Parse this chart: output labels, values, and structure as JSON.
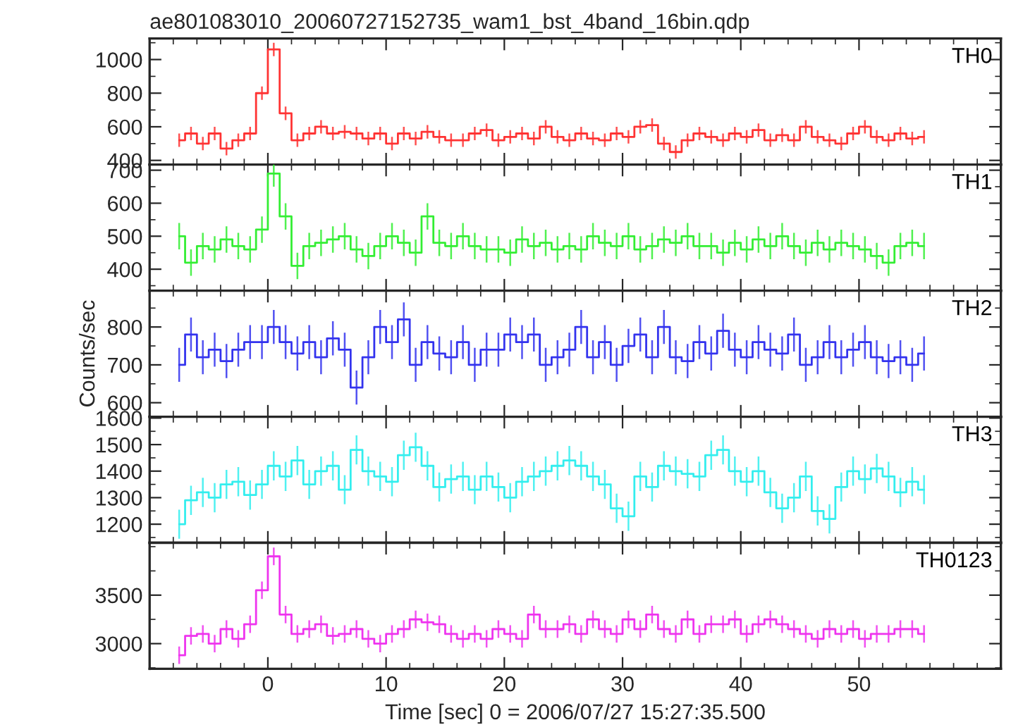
{
  "chart_data": [
    {
      "type": "step",
      "title": "ae801083010_20060727152735_wam1_bst_4band_16bin.qdp",
      "xlim": [
        -10,
        62
      ],
      "xticks": [
        0,
        10,
        20,
        30,
        40,
        50
      ],
      "ylim": [
        375,
        1125
      ],
      "yticks": [
        400,
        600,
        800,
        1000
      ],
      "tick_labels": "y",
      "x": [
        -7.5,
        -6.5,
        -5.5,
        -4.5,
        -3.5,
        -2.5,
        -1.5,
        -0.5,
        0.5,
        1.5,
        2.5,
        3.5,
        4.5,
        5.5,
        6.5,
        7.5,
        8.5,
        9.5,
        10.5,
        11.5,
        12.5,
        13.5,
        14.5,
        15.5,
        16.5,
        17.5,
        18.5,
        19.5,
        20.5,
        21.5,
        22.5,
        23.5,
        24.5,
        25.5,
        26.5,
        27.5,
        28.5,
        29.5,
        30.5,
        31.5,
        32.5,
        33.5,
        34.5,
        35.5,
        36.5,
        37.5,
        38.5,
        39.5,
        40.5,
        41.5,
        42.5,
        43.5,
        44.5,
        45.5,
        46.5,
        47.5,
        48.5,
        49.5,
        50.5,
        51.5,
        52.5,
        53.5,
        54.5,
        55.5
      ],
      "series": [
        {
          "name": "TH0",
          "color": "#ff3333",
          "values": [
            520,
            560,
            500,
            560,
            470,
            520,
            560,
            800,
            1060,
            680,
            520,
            560,
            600,
            560,
            570,
            560,
            530,
            560,
            500,
            560,
            530,
            570,
            540,
            520,
            520,
            560,
            580,
            520,
            540,
            560,
            530,
            600,
            540,
            520,
            560,
            530,
            520,
            560,
            540,
            600,
            610,
            500,
            450,
            520,
            560,
            540,
            520,
            560,
            540,
            580,
            520,
            550,
            520,
            600,
            540,
            520,
            500,
            560,
            600,
            540,
            520,
            560,
            530,
            540
          ],
          "errors": [
            40,
            40,
            40,
            40,
            40,
            40,
            40,
            40,
            40,
            40,
            40,
            40,
            40,
            40,
            40,
            40,
            40,
            40,
            40,
            40,
            40,
            40,
            40,
            40,
            40,
            40,
            40,
            40,
            40,
            40,
            40,
            40,
            40,
            40,
            40,
            40,
            40,
            40,
            40,
            40,
            40,
            40,
            40,
            40,
            40,
            40,
            40,
            40,
            40,
            40,
            40,
            40,
            40,
            40,
            40,
            40,
            40,
            40,
            40,
            40,
            40,
            40,
            40,
            40
          ]
        }
      ]
    },
    {
      "type": "step",
      "xlim": [
        -10,
        62
      ],
      "xticks": [
        0,
        10,
        20,
        30,
        40,
        50
      ],
      "ylim": [
        335,
        717
      ],
      "yticks": [
        400,
        500,
        600,
        700
      ],
      "tick_labels": "y",
      "x": [
        -7.5,
        -6.5,
        -5.5,
        -4.5,
        -3.5,
        -2.5,
        -1.5,
        -0.5,
        0.5,
        1.5,
        2.5,
        3.5,
        4.5,
        5.5,
        6.5,
        7.5,
        8.5,
        9.5,
        10.5,
        11.5,
        12.5,
        13.5,
        14.5,
        15.5,
        16.5,
        17.5,
        18.5,
        19.5,
        20.5,
        21.5,
        22.5,
        23.5,
        24.5,
        25.5,
        26.5,
        27.5,
        28.5,
        29.5,
        30.5,
        31.5,
        32.5,
        33.5,
        34.5,
        35.5,
        36.5,
        37.5,
        38.5,
        39.5,
        40.5,
        41.5,
        42.5,
        43.5,
        44.5,
        45.5,
        46.5,
        47.5,
        48.5,
        49.5,
        50.5,
        51.5,
        52.5,
        53.5,
        54.5,
        55.5
      ],
      "series": [
        {
          "name": "TH1",
          "color": "#33ee33",
          "values": [
            500,
            420,
            470,
            460,
            490,
            470,
            460,
            520,
            690,
            560,
            410,
            470,
            480,
            490,
            500,
            460,
            440,
            470,
            500,
            480,
            450,
            560,
            480,
            470,
            500,
            470,
            460,
            460,
            450,
            490,
            470,
            480,
            460,
            470,
            460,
            500,
            480,
            470,
            500,
            460,
            470,
            490,
            480,
            500,
            470,
            470,
            450,
            480,
            460,
            490,
            470,
            500,
            470,
            450,
            480,
            460,
            480,
            470,
            460,
            440,
            420,
            470,
            480,
            470
          ],
          "errors": [
            40,
            40,
            40,
            40,
            40,
            40,
            40,
            40,
            40,
            40,
            40,
            40,
            40,
            40,
            40,
            40,
            40,
            40,
            40,
            40,
            40,
            40,
            40,
            40,
            40,
            40,
            40,
            40,
            40,
            40,
            40,
            40,
            40,
            40,
            40,
            40,
            40,
            40,
            40,
            40,
            40,
            40,
            40,
            40,
            40,
            40,
            40,
            40,
            40,
            40,
            40,
            40,
            40,
            40,
            40,
            40,
            40,
            40,
            40,
            40,
            40,
            40,
            40,
            40
          ]
        }
      ]
    },
    {
      "type": "step",
      "ylabel": "Counts/sec",
      "xlim": [
        -10,
        62
      ],
      "xticks": [
        0,
        10,
        20,
        30,
        40,
        50
      ],
      "ylim": [
        563,
        896
      ],
      "yticks": [
        600,
        700,
        800
      ],
      "tick_labels": "y",
      "x": [
        -7.5,
        -6.5,
        -5.5,
        -4.5,
        -3.5,
        -2.5,
        -1.5,
        -0.5,
        0.5,
        1.5,
        2.5,
        3.5,
        4.5,
        5.5,
        6.5,
        7.5,
        8.5,
        9.5,
        10.5,
        11.5,
        12.5,
        13.5,
        14.5,
        15.5,
        16.5,
        17.5,
        18.5,
        19.5,
        20.5,
        21.5,
        22.5,
        23.5,
        24.5,
        25.5,
        26.5,
        27.5,
        28.5,
        29.5,
        30.5,
        31.5,
        32.5,
        33.5,
        34.5,
        35.5,
        36.5,
        37.5,
        38.5,
        39.5,
        40.5,
        41.5,
        42.5,
        43.5,
        44.5,
        45.5,
        46.5,
        47.5,
        48.5,
        49.5,
        50.5,
        51.5,
        52.5,
        53.5,
        54.5,
        55.5
      ],
      "series": [
        {
          "name": "TH2",
          "color": "#3333ee",
          "values": [
            700,
            780,
            720,
            740,
            710,
            740,
            760,
            760,
            800,
            760,
            730,
            760,
            720,
            770,
            740,
            640,
            720,
            800,
            760,
            820,
            700,
            760,
            730,
            720,
            760,
            700,
            740,
            740,
            780,
            760,
            780,
            700,
            720,
            740,
            800,
            720,
            760,
            700,
            750,
            780,
            720,
            800,
            720,
            710,
            760,
            730,
            790,
            740,
            720,
            760,
            740,
            730,
            780,
            700,
            720,
            760,
            720,
            740,
            760,
            720,
            710,
            720,
            700,
            730
          ],
          "errors": [
            45,
            45,
            45,
            45,
            45,
            45,
            45,
            45,
            45,
            45,
            45,
            45,
            45,
            45,
            45,
            45,
            45,
            45,
            45,
            45,
            45,
            45,
            45,
            45,
            45,
            45,
            45,
            45,
            45,
            45,
            45,
            45,
            45,
            45,
            45,
            45,
            45,
            45,
            45,
            45,
            45,
            45,
            45,
            45,
            45,
            45,
            45,
            45,
            45,
            45,
            45,
            45,
            45,
            45,
            45,
            45,
            45,
            45,
            45,
            45,
            45,
            45,
            45,
            45
          ]
        }
      ]
    },
    {
      "type": "step",
      "xlim": [
        -10,
        62
      ],
      "xticks": [
        0,
        10,
        20,
        30,
        40,
        50
      ],
      "ylim": [
        1130,
        1605
      ],
      "yticks": [
        1200,
        1300,
        1400,
        1500,
        1600
      ],
      "tick_labels": "y",
      "x": [
        -7.5,
        -6.5,
        -5.5,
        -4.5,
        -3.5,
        -2.5,
        -1.5,
        -0.5,
        0.5,
        1.5,
        2.5,
        3.5,
        4.5,
        5.5,
        6.5,
        7.5,
        8.5,
        9.5,
        10.5,
        11.5,
        12.5,
        13.5,
        14.5,
        15.5,
        16.5,
        17.5,
        18.5,
        19.5,
        20.5,
        21.5,
        22.5,
        23.5,
        24.5,
        25.5,
        26.5,
        27.5,
        28.5,
        29.5,
        30.5,
        31.5,
        32.5,
        33.5,
        34.5,
        35.5,
        36.5,
        37.5,
        38.5,
        39.5,
        40.5,
        41.5,
        42.5,
        43.5,
        44.5,
        45.5,
        46.5,
        47.5,
        48.5,
        49.5,
        50.5,
        51.5,
        52.5,
        53.5,
        54.5,
        55.5
      ],
      "series": [
        {
          "name": "TH3",
          "color": "#33eeee",
          "values": [
            1200,
            1290,
            1320,
            1300,
            1350,
            1360,
            1310,
            1350,
            1420,
            1380,
            1440,
            1350,
            1400,
            1420,
            1330,
            1480,
            1400,
            1380,
            1360,
            1460,
            1490,
            1420,
            1340,
            1370,
            1380,
            1330,
            1380,
            1340,
            1300,
            1360,
            1380,
            1400,
            1420,
            1440,
            1420,
            1380,
            1350,
            1260,
            1230,
            1380,
            1340,
            1420,
            1400,
            1390,
            1380,
            1460,
            1480,
            1400,
            1360,
            1400,
            1320,
            1260,
            1300,
            1380,
            1250,
            1220,
            1340,
            1400,
            1370,
            1410,
            1380,
            1320,
            1360,
            1330
          ],
          "errors": [
            55,
            55,
            55,
            55,
            55,
            55,
            55,
            55,
            55,
            55,
            55,
            55,
            55,
            55,
            55,
            55,
            55,
            55,
            55,
            55,
            55,
            55,
            55,
            55,
            55,
            55,
            55,
            55,
            55,
            55,
            55,
            55,
            55,
            55,
            55,
            55,
            55,
            55,
            55,
            55,
            55,
            55,
            55,
            55,
            55,
            55,
            55,
            55,
            55,
            55,
            55,
            55,
            55,
            55,
            55,
            55,
            55,
            55,
            55,
            55,
            55,
            55,
            55,
            55
          ]
        }
      ]
    },
    {
      "type": "step",
      "xlabel": "Time [sec] 0 = 2006/07/27 15:27:35.500",
      "xlim": [
        -10,
        62
      ],
      "xticks": [
        0,
        10,
        20,
        30,
        40,
        50
      ],
      "ylim": [
        2740,
        4040
      ],
      "yticks": [
        3000,
        3500
      ],
      "x": [
        -7.5,
        -6.5,
        -5.5,
        -4.5,
        -3.5,
        -2.5,
        -1.5,
        -0.5,
        0.5,
        1.5,
        2.5,
        3.5,
        4.5,
        5.5,
        6.5,
        7.5,
        8.5,
        9.5,
        10.5,
        11.5,
        12.5,
        13.5,
        14.5,
        15.5,
        16.5,
        17.5,
        18.5,
        19.5,
        20.5,
        21.5,
        22.5,
        23.5,
        24.5,
        25.5,
        26.5,
        27.5,
        28.5,
        29.5,
        30.5,
        31.5,
        32.5,
        33.5,
        34.5,
        35.5,
        36.5,
        37.5,
        38.5,
        39.5,
        40.5,
        41.5,
        42.5,
        43.5,
        44.5,
        45.5,
        46.5,
        47.5,
        48.5,
        49.5,
        50.5,
        51.5,
        52.5,
        53.5,
        54.5,
        55.5
      ],
      "series": [
        {
          "name": "TH0123",
          "color": "#ee33ee",
          "values": [
            2880,
            3080,
            3100,
            3000,
            3150,
            3050,
            3200,
            3550,
            3900,
            3300,
            3100,
            3150,
            3200,
            3080,
            3100,
            3150,
            3050,
            3000,
            3100,
            3150,
            3250,
            3220,
            3200,
            3100,
            3050,
            3100,
            3050,
            3150,
            3100,
            3050,
            3300,
            3150,
            3150,
            3200,
            3100,
            3250,
            3150,
            3100,
            3250,
            3150,
            3300,
            3150,
            3100,
            3250,
            3100,
            3200,
            3200,
            3250,
            3100,
            3200,
            3250,
            3200,
            3150,
            3100,
            3050,
            3150,
            3100,
            3150,
            3050,
            3100,
            3100,
            3150,
            3150,
            3100
          ],
          "errors": [
            90,
            90,
            90,
            90,
            90,
            90,
            90,
            90,
            90,
            90,
            90,
            90,
            90,
            90,
            90,
            90,
            90,
            90,
            90,
            90,
            90,
            90,
            90,
            90,
            90,
            90,
            90,
            90,
            90,
            90,
            90,
            90,
            90,
            90,
            90,
            90,
            90,
            90,
            90,
            90,
            90,
            90,
            90,
            90,
            90,
            90,
            90,
            90,
            90,
            90,
            90,
            90,
            90,
            90,
            90,
            90,
            90,
            90,
            90,
            90,
            90,
            90,
            90,
            90
          ]
        }
      ]
    }
  ]
}
